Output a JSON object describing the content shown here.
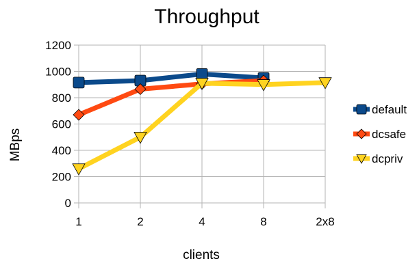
{
  "chart_data": {
    "type": "line",
    "title": "Throughput",
    "xlabel": "clients",
    "ylabel": "MBps",
    "categories": [
      "1",
      "2",
      "4",
      "8",
      "2x8"
    ],
    "ylim": [
      0,
      1200
    ],
    "yticks": [
      "0",
      "200",
      "400",
      "600",
      "800",
      "1000",
      "1200"
    ],
    "grid": true,
    "legend_position": "right",
    "series": [
      {
        "name": "default",
        "color": "#0b4a8b",
        "marker": "square",
        "values": [
          915,
          930,
          980,
          950,
          null
        ]
      },
      {
        "name": "dcsafe",
        "color": "#ff4a12",
        "marker": "diamond",
        "values": [
          670,
          865,
          905,
          930,
          null
        ]
      },
      {
        "name": "dcpriv",
        "color": "#ffd320",
        "marker": "triangle-down",
        "values": [
          260,
          500,
          910,
          900,
          915
        ]
      }
    ]
  }
}
